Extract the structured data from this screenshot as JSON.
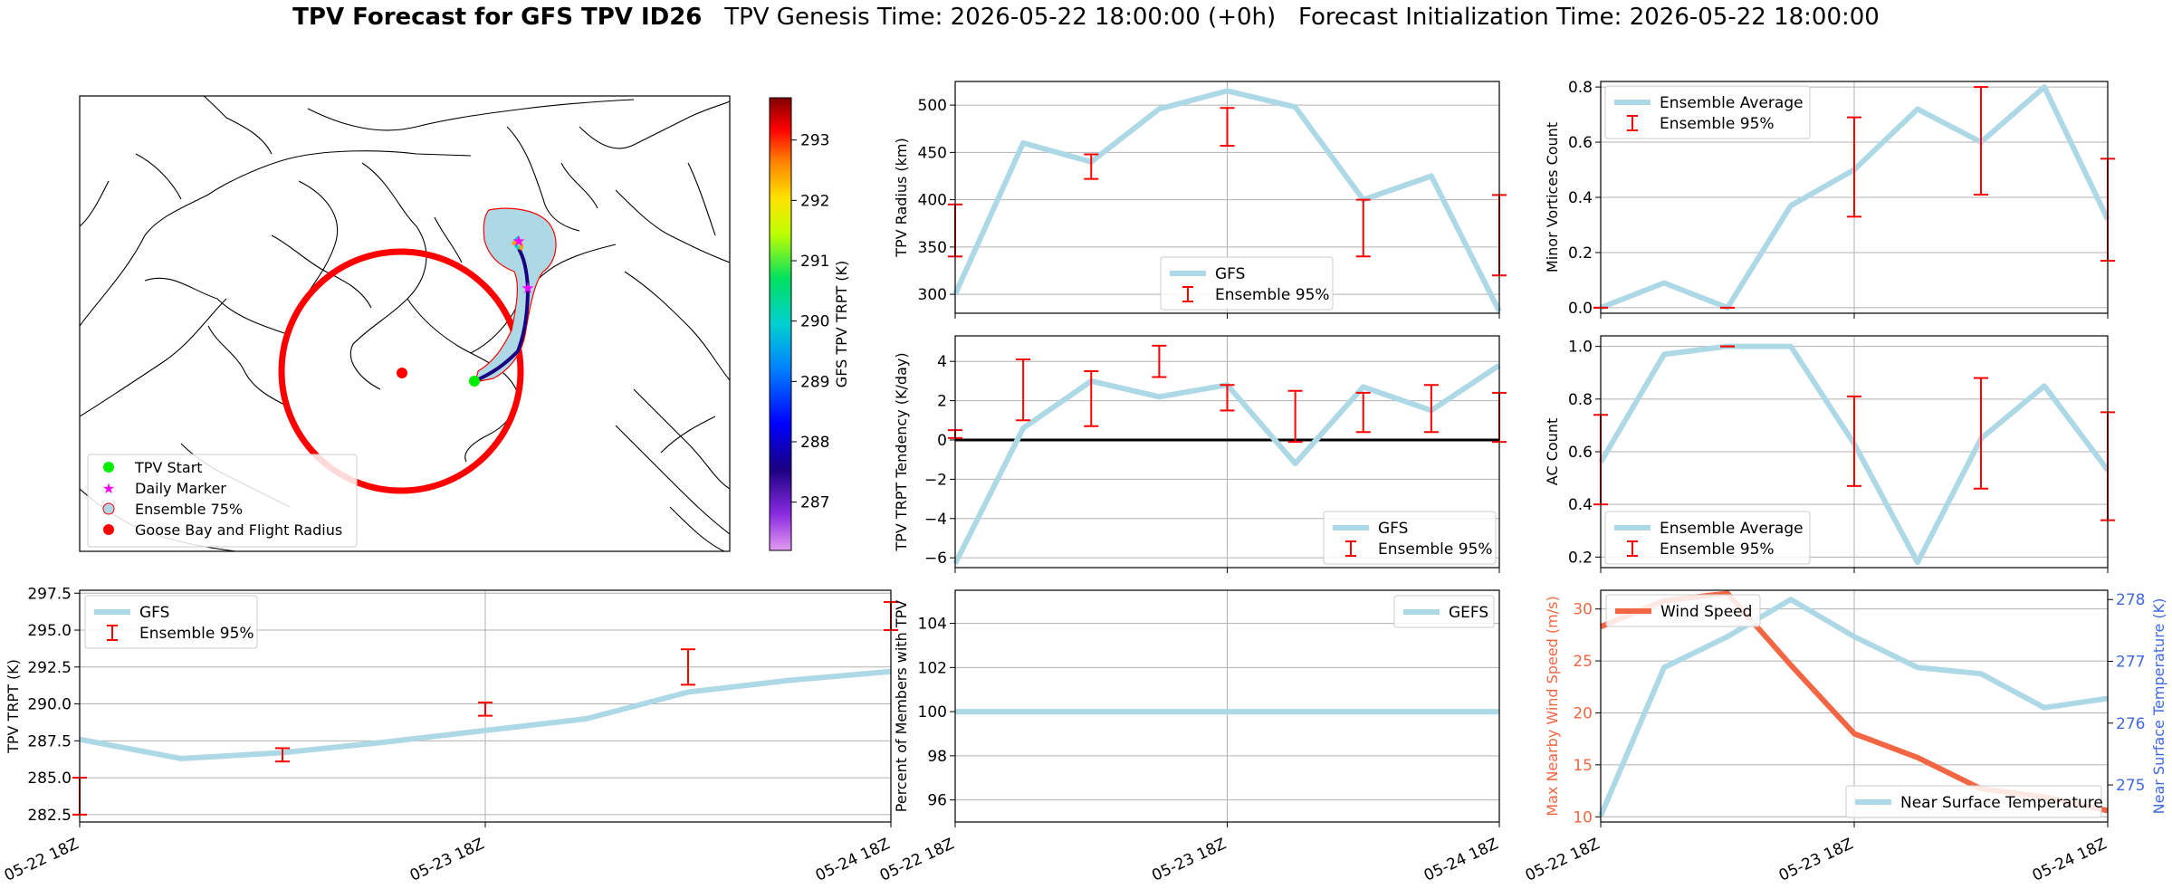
{
  "title": {
    "bold": "TPV Forecast for GFS TPV ID26",
    "genesis": "TPV Genesis Time: 2026-05-22 18:00:00 (+0h)",
    "init": "Forecast Initialization Time: 2026-05-22 18:00:00"
  },
  "colors": {
    "gfs": "#add8e6",
    "ens": "#ff0000",
    "wind": "#f26644",
    "temp": "#4169e1",
    "zero": "#000000"
  },
  "map": {
    "colorbar_label": "GFS TPV TRPT (K)",
    "colorbar_ticks": [
      "293",
      "292",
      "291",
      "290",
      "289",
      "288",
      "287"
    ],
    "legend": [
      "TPV Start",
      "Daily Marker",
      "Ensemble 75%",
      "Goose Bay and Flight Radius"
    ]
  },
  "chart_data": [
    {
      "id": "trpt",
      "type": "line",
      "x": [
        "05-22 18Z",
        "05-22 21Z",
        "05-23 00Z",
        "05-23 03Z",
        "05-23 06Z",
        "05-23 09Z",
        "05-23 12Z",
        "05-23 15Z",
        "05-23 18Z",
        "05-23 21Z",
        "05-24 00Z",
        "05-24 03Z",
        "05-24 06Z",
        "05-24 09Z",
        "05-24 12Z",
        "05-24 15Z",
        "05-24 18Z"
      ],
      "xticks": [
        "05-22 18Z",
        "05-23 18Z",
        "05-24 18Z"
      ],
      "ylabel": "TPV TRPT (K)",
      "ylim": [
        282.0,
        297.7
      ],
      "yticks": [
        "282.5",
        "285.0",
        "287.5",
        "290.0",
        "292.5",
        "295.0",
        "297.5"
      ],
      "series": [
        {
          "name": "GFS",
          "values": [
            287.6,
            null,
            286.3,
            null,
            286.7,
            null,
            287.4,
            null,
            288.2,
            null,
            289.0,
            null,
            290.8,
            null,
            291.6,
            null,
            292.2
          ]
        }
      ],
      "error_bars": {
        "name": "Ensemble 95%",
        "x": [
          0,
          4,
          8,
          12,
          16
        ],
        "low": [
          282.5,
          286.1,
          289.2,
          291.3,
          295.0
        ],
        "high": [
          285.0,
          287.0,
          290.1,
          293.7,
          296.9
        ]
      },
      "legend": [
        "GFS",
        "Ensemble 95%"
      ],
      "legend_pos": "top-left"
    },
    {
      "id": "radius",
      "type": "line",
      "x": [
        "05-22 18Z",
        "05-22 21Z",
        "05-23 00Z",
        "05-23 03Z",
        "05-23 06Z",
        "05-23 09Z",
        "05-23 12Z",
        "05-23 15Z",
        "05-23 18Z"
      ],
      "xticks": [
        "05-22 18Z",
        "05-23 18Z",
        "05-24 18Z"
      ],
      "ylabel": "TPV Radius (km)",
      "ylim": [
        280,
        525
      ],
      "yticks": [
        "300",
        "350",
        "400",
        "450",
        "500"
      ],
      "series": [
        {
          "name": "GFS",
          "values": [
            300,
            460,
            440,
            496,
            515,
            498,
            400,
            425,
            282
          ]
        }
      ],
      "error_bars": {
        "name": "Ensemble 95%",
        "x": [
          0,
          2,
          4,
          6,
          8
        ],
        "low": [
          340,
          422,
          457,
          340,
          320
        ],
        "high": [
          395,
          448,
          497,
          400,
          405
        ]
      },
      "legend": [
        "GFS",
        "Ensemble 95%"
      ],
      "legend_pos": "bottom-center"
    },
    {
      "id": "tendency",
      "type": "line",
      "x": [
        "05-22 18Z",
        "05-22 21Z",
        "05-23 00Z",
        "05-23 03Z",
        "05-23 06Z",
        "05-23 09Z",
        "05-23 12Z",
        "05-23 15Z",
        "05-23 18Z"
      ],
      "xticks": [
        "05-22 18Z",
        "05-23 18Z",
        "05-24 18Z"
      ],
      "ylabel": "TPV TRPT Tendency (K/day)",
      "ylim": [
        -6.5,
        5.3
      ],
      "yticks": [
        "4",
        "2",
        "0",
        "−2",
        "−4",
        "−6"
      ],
      "series": [
        {
          "name": "GFS",
          "values": [
            -6.3,
            0.6,
            3.0,
            2.2,
            2.8,
            -1.2,
            2.7,
            1.5,
            3.8
          ]
        }
      ],
      "error_bars": {
        "name": "Ensemble 95%",
        "x": [
          0,
          1,
          2,
          3,
          4,
          5,
          6,
          7,
          8
        ],
        "low": [
          0.1,
          1.0,
          0.7,
          3.2,
          1.5,
          -0.1,
          0.4,
          0.4,
          -0.1
        ],
        "high": [
          0.5,
          4.1,
          3.5,
          4.8,
          2.8,
          2.5,
          2.4,
          2.8,
          2.4
        ]
      },
      "zero_line": 0,
      "legend": [
        "GFS",
        "Ensemble 95%"
      ],
      "legend_pos": "bottom-right"
    },
    {
      "id": "members",
      "type": "line",
      "x": [
        "05-22 18Z",
        "05-23 18Z",
        "05-24 18Z"
      ],
      "xticks": [
        "05-22 18Z",
        "05-23 18Z",
        "05-24 18Z"
      ],
      "ylabel": "Percent of Members with TPV",
      "ylim": [
        95,
        105.5
      ],
      "yticks": [
        "104",
        "102",
        "100",
        "98",
        "96"
      ],
      "series": [
        {
          "name": "GEFS",
          "values": [
            100,
            100,
            100
          ]
        }
      ],
      "legend": [
        "GEFS"
      ],
      "legend_pos": "top-right"
    },
    {
      "id": "minor",
      "type": "line",
      "x": [
        "05-22 18Z",
        "05-22 21Z",
        "05-23 00Z",
        "05-23 03Z",
        "05-23 06Z",
        "05-23 09Z",
        "05-23 12Z",
        "05-23 15Z",
        "05-23 18Z"
      ],
      "xticks": [
        "05-22 18Z",
        "05-23 18Z",
        "05-24 18Z"
      ],
      "ylabel": "Minor Vortices Count",
      "ylim": [
        -0.02,
        0.82
      ],
      "yticks": [
        "0.8",
        "0.6",
        "0.4",
        "0.2",
        "0.0"
      ],
      "series": [
        {
          "name": "Ensemble Average",
          "values": [
            0.0,
            0.09,
            0.0,
            0.37,
            0.5,
            0.72,
            0.6,
            0.8,
            0.32
          ]
        }
      ],
      "error_bars": {
        "name": "Ensemble 95%",
        "x": [
          0,
          2,
          4,
          6,
          8
        ],
        "low": [
          0.0,
          0.0,
          0.33,
          0.41,
          0.17
        ],
        "high": [
          0.0,
          0.0,
          0.69,
          0.8,
          0.54
        ]
      },
      "legend": [
        "Ensemble Average",
        "Ensemble 95%"
      ],
      "legend_pos": "top-left"
    },
    {
      "id": "ac",
      "type": "line",
      "x": [
        "05-22 18Z",
        "05-22 21Z",
        "05-23 00Z",
        "05-23 03Z",
        "05-23 06Z",
        "05-23 09Z",
        "05-23 12Z",
        "05-23 15Z",
        "05-23 18Z"
      ],
      "xticks": [
        "05-22 18Z",
        "05-23 18Z",
        "05-24 18Z"
      ],
      "ylabel": "AC Count",
      "ylim": [
        0.16,
        1.04
      ],
      "yticks": [
        "1.0",
        "0.8",
        "0.6",
        "0.4",
        "0.2"
      ],
      "series": [
        {
          "name": "Ensemble Average",
          "values": [
            0.56,
            0.97,
            1.0,
            1.0,
            0.63,
            0.18,
            0.65,
            0.85,
            0.53
          ]
        }
      ],
      "error_bars": {
        "name": "Ensemble 95%",
        "x": [
          0,
          2,
          4,
          6,
          8
        ],
        "low": [
          0.4,
          1.0,
          0.47,
          0.46,
          0.34
        ],
        "high": [
          0.74,
          1.0,
          0.81,
          0.88,
          0.75
        ]
      },
      "legend": [
        "Ensemble Average",
        "Ensemble 95%"
      ],
      "legend_pos": "bottom-left"
    },
    {
      "id": "wind",
      "type": "line",
      "x": [
        "05-22 18Z",
        "05-22 21Z",
        "05-23 00Z",
        "05-23 03Z",
        "05-23 06Z",
        "05-23 09Z",
        "05-23 12Z",
        "05-23 15Z",
        "05-23 18Z"
      ],
      "xticks": [
        "05-22 18Z",
        "05-23 18Z",
        "05-24 18Z"
      ],
      "ylabel": "Max Nearby Wind Speed (m/s)",
      "ylim": [
        9.5,
        31.8
      ],
      "yticks": [
        "30",
        "25",
        "20",
        "15",
        "10"
      ],
      "y2label": "Near Surface Temperature (K)",
      "y2lim": [
        274.4,
        278.15
      ],
      "y2ticks": [
        "278",
        "277",
        "276",
        "275"
      ],
      "series": [
        {
          "name": "Wind Speed",
          "axis": "left",
          "values": [
            28.3,
            30.8,
            31.5,
            24.6,
            18.0,
            15.7,
            12.7,
            11.9,
            10.6
          ]
        },
        {
          "name": "Near Surface Temperature",
          "axis": "right",
          "values": [
            274.5,
            276.9,
            277.4,
            278.0,
            277.4,
            276.9,
            276.8,
            276.25,
            276.4
          ]
        }
      ],
      "legend": [
        "Wind Speed",
        "Near Surface Temperature"
      ],
      "legend_pos": "top-left / bottom-right"
    }
  ]
}
